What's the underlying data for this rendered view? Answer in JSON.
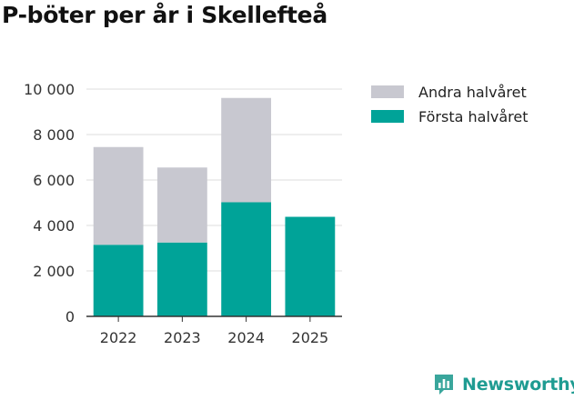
{
  "title": "P-böter per år i Skellefteå",
  "chart_data": {
    "type": "bar",
    "stacked": true,
    "title": "P-böter per år i Skellefteå",
    "xlabel": "",
    "ylabel": "",
    "categories": [
      "2022",
      "2023",
      "2024",
      "2025"
    ],
    "series": [
      {
        "name": "Första halvåret",
        "color": "#00a398",
        "values": [
          3150,
          3250,
          5020,
          4380
        ]
      },
      {
        "name": "Andra halvåret",
        "color": "#c8c8d0",
        "values": [
          4300,
          3300,
          4590,
          0
        ]
      }
    ],
    "ylim": [
      0,
      10000
    ],
    "yticks": [
      0,
      2000,
      4000,
      6000,
      8000,
      10000
    ],
    "ytick_labels": [
      "0",
      "2 000",
      "4 000",
      "6 000",
      "8 000",
      "10 000"
    ],
    "grid": true,
    "legend": {
      "placement": "right",
      "order": [
        "Andra halvåret",
        "Första halvåret"
      ]
    }
  },
  "brand": {
    "name": "Newsworthy",
    "logo_icon": "newsworthy-chart-icon",
    "color": "#1f9c92"
  }
}
